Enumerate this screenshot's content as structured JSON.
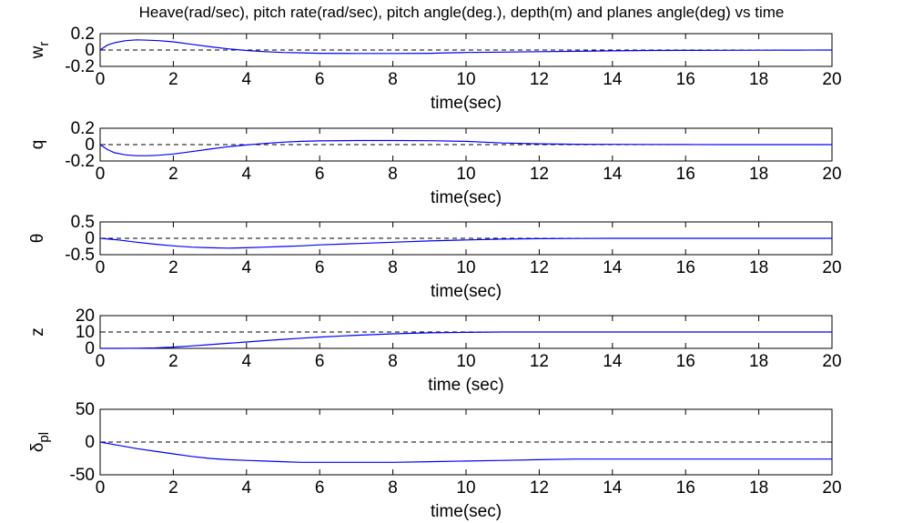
{
  "figure": {
    "title": "Heave(rad/sec), pitch rate(rad/sec), pitch angle(deg.), depth(m) and planes angle(deg) vs time"
  },
  "chart_data": [
    {
      "type": "line",
      "ylabel": "w",
      "ylabel_sub": "r",
      "xlabel": "time(sec)",
      "xlim": [
        0,
        20
      ],
      "ylim": [
        -0.2,
        0.2
      ],
      "xticks": [
        0,
        2,
        4,
        6,
        8,
        10,
        12,
        14,
        16,
        18,
        20
      ],
      "yticks": [
        -0.2,
        0,
        0.2
      ],
      "yticklabels": [
        "-0.2",
        "0",
        "0.2"
      ],
      "reference": 0,
      "grid": false,
      "series": [
        {
          "color": "#0000ff",
          "x": [
            0,
            0.2,
            0.4,
            0.7,
            1.0,
            1.3,
            1.6,
            2.0,
            2.5,
            3.0,
            3.5,
            4.0,
            4.5,
            5.0,
            5.5,
            6.0,
            7.0,
            8.0,
            9.0,
            9.5,
            10.0,
            11.0,
            12.0,
            13.0,
            14.0,
            15.0,
            16.0,
            17.0,
            18.0,
            19.0,
            20.0
          ],
          "y": [
            0,
            0.06,
            0.09,
            0.115,
            0.125,
            0.12,
            0.115,
            0.1,
            0.07,
            0.04,
            0.015,
            -0.005,
            -0.02,
            -0.03,
            -0.035,
            -0.04,
            -0.042,
            -0.042,
            -0.04,
            -0.035,
            -0.03,
            -0.025,
            -0.02,
            -0.015,
            -0.01,
            -0.005,
            -0.004,
            -0.003,
            -0.002,
            -0.001,
            0
          ]
        }
      ]
    },
    {
      "type": "line",
      "ylabel": "q",
      "xlabel": "time(sec)",
      "xlim": [
        0,
        20
      ],
      "ylim": [
        -0.2,
        0.2
      ],
      "xticks": [
        0,
        2,
        4,
        6,
        8,
        10,
        12,
        14,
        16,
        18,
        20
      ],
      "yticks": [
        -0.2,
        0,
        0.2
      ],
      "yticklabels": [
        "-0.2",
        "0",
        "0.2"
      ],
      "reference": 0,
      "grid": false,
      "series": [
        {
          "color": "#0000ff",
          "x": [
            0,
            0.2,
            0.4,
            0.7,
            1.0,
            1.3,
            1.6,
            2.0,
            2.5,
            3.0,
            3.5,
            4.0,
            4.5,
            5.0,
            5.5,
            6.0,
            7.0,
            8.0,
            9.0,
            10.0,
            10.5,
            11.0,
            12.0,
            13.0,
            14.0,
            15.0,
            16.0,
            17.0,
            18.0,
            19.0,
            20.0
          ],
          "y": [
            0,
            -0.06,
            -0.1,
            -0.125,
            -0.135,
            -0.135,
            -0.13,
            -0.115,
            -0.085,
            -0.055,
            -0.025,
            -0.005,
            0.015,
            0.03,
            0.04,
            0.045,
            0.05,
            0.05,
            0.048,
            0.04,
            0.03,
            0.02,
            0.01,
            0.005,
            0.003,
            0.002,
            0.001,
            0,
            0,
            0,
            0
          ]
        }
      ]
    },
    {
      "type": "line",
      "ylabel": "θ",
      "xlabel": "time(sec)",
      "xlim": [
        0,
        20
      ],
      "ylim": [
        -0.5,
        0.5
      ],
      "xticks": [
        0,
        2,
        4,
        6,
        8,
        10,
        12,
        14,
        16,
        18,
        20
      ],
      "yticks": [
        -0.5,
        0,
        0.5
      ],
      "yticklabels": [
        "-0.5",
        "0",
        "0.5"
      ],
      "reference": 0,
      "grid": false,
      "series": [
        {
          "color": "#0000ff",
          "x": [
            0,
            0.5,
            1.0,
            1.5,
            2.0,
            2.5,
            3.0,
            3.5,
            4.0,
            4.5,
            5.0,
            5.5,
            6.0,
            7.0,
            8.0,
            9.0,
            10.0,
            11.0,
            12.0,
            13.0,
            14.0,
            15.0,
            16.0,
            17.0,
            18.0,
            19.0,
            20.0
          ],
          "y": [
            0,
            -0.05,
            -0.12,
            -0.18,
            -0.23,
            -0.27,
            -0.29,
            -0.3,
            -0.29,
            -0.27,
            -0.25,
            -0.23,
            -0.2,
            -0.16,
            -0.12,
            -0.08,
            -0.05,
            -0.025,
            -0.01,
            -0.005,
            0,
            0,
            0,
            0,
            0,
            0,
            0
          ]
        }
      ]
    },
    {
      "type": "line",
      "ylabel": "z",
      "xlabel": "time (sec)",
      "xlim": [
        0,
        20
      ],
      "ylim": [
        0,
        20
      ],
      "xticks": [
        0,
        2,
        4,
        6,
        8,
        10,
        12,
        14,
        16,
        18,
        20
      ],
      "yticks": [
        0,
        10,
        20
      ],
      "yticklabels": [
        "0",
        "10",
        "20"
      ],
      "reference": 10,
      "grid": false,
      "series": [
        {
          "color": "#0000ff",
          "x": [
            0,
            0.5,
            1.0,
            1.5,
            2.0,
            2.5,
            3.0,
            3.5,
            4.0,
            4.5,
            5.0,
            5.5,
            6.0,
            7.0,
            8.0,
            9.0,
            10.0,
            11.0,
            12.0,
            13.0,
            14.0,
            15.0,
            16.0,
            17.0,
            18.0,
            19.0,
            20.0
          ],
          "y": [
            0,
            0,
            0.1,
            0.3,
            0.8,
            1.5,
            2.3,
            3.1,
            3.9,
            4.7,
            5.5,
            6.2,
            6.9,
            8.0,
            8.9,
            9.5,
            9.8,
            10.0,
            10.0,
            10.0,
            10.0,
            10.0,
            10.0,
            10.0,
            10.0,
            10.0,
            10.0
          ]
        }
      ]
    },
    {
      "type": "line",
      "ylabel": "δ",
      "ylabel_sub": "pl",
      "xlabel": "time(sec)",
      "xlim": [
        0,
        20
      ],
      "ylim": [
        -50,
        50
      ],
      "xticks": [
        0,
        2,
        4,
        6,
        8,
        10,
        12,
        14,
        16,
        18,
        20
      ],
      "yticks": [
        -50,
        0,
        50
      ],
      "yticklabels": [
        "-50",
        "0",
        "50"
      ],
      "reference": 0,
      "grid": false,
      "series": [
        {
          "color": "#0000ff",
          "x": [
            0,
            0.3,
            0.6,
            1.0,
            1.5,
            2.0,
            2.5,
            3.0,
            3.5,
            4.0,
            4.5,
            5.0,
            5.5,
            6.0,
            7.0,
            8.0,
            9.0,
            10.0,
            11.0,
            12.0,
            13.0,
            14.0,
            15.0,
            16.0,
            17.0,
            18.0,
            19.0,
            20.0
          ],
          "y": [
            0,
            -3,
            -6,
            -10,
            -14,
            -18,
            -22,
            -25,
            -27,
            -28,
            -29,
            -30,
            -31,
            -31,
            -31,
            -31,
            -30,
            -29,
            -28,
            -27,
            -26,
            -26,
            -26,
            -26,
            -26,
            -26,
            -26,
            -26
          ]
        }
      ]
    }
  ]
}
